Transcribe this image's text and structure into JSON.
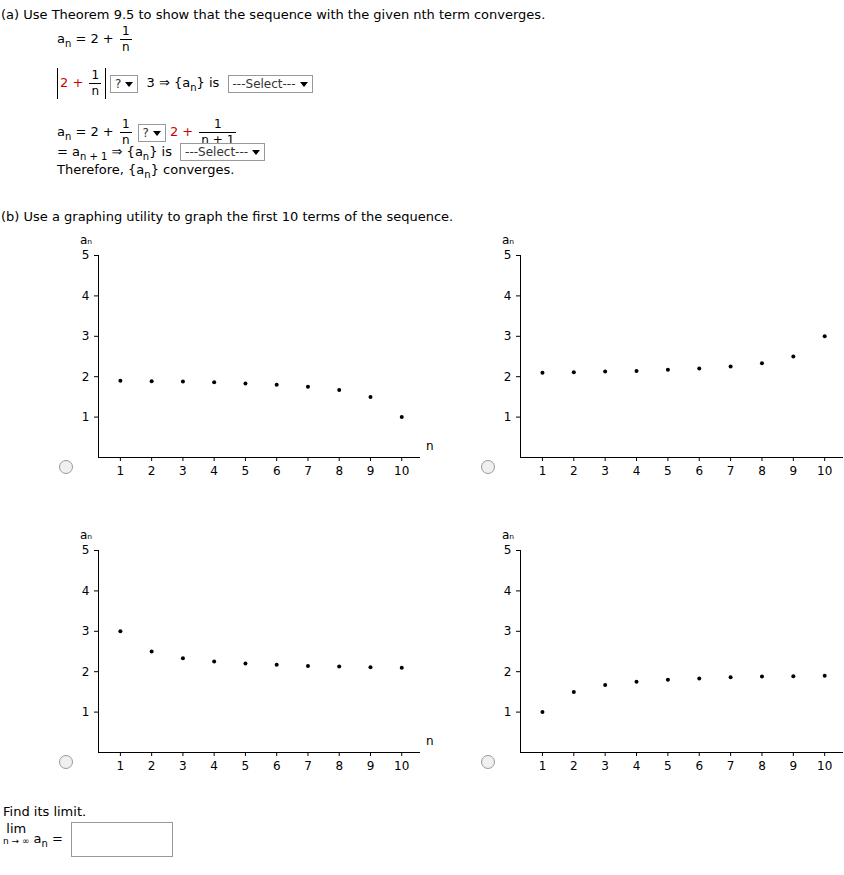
{
  "document": {
    "part_a": {
      "prompt": "(a) Use Theorem 9.5 to show that the sequence with the given nth term converges.",
      "lines": [
        [
          {
            "sub": [
              "a",
              "n"
            ]
          },
          " = 2 + ",
          {
            "frac": [
              "1",
              "n"
            ]
          }
        ],
        [
          {
            "abs": [
              {
                "red": "2 + "
              },
              {
                "frac": [
                  "1",
                  "n"
                ]
              }
            ]
          },
          {
            "select": "?"
          },
          " 3 ⇒ {",
          {
            "sub": [
              "a",
              "n"
            ]
          },
          "} is ",
          {
            "select": "---Select---"
          }
        ],
        [
          {
            "sub": [
              "a",
              "n"
            ]
          },
          " = 2 + ",
          {
            "frac": [
              "1",
              "n"
            ]
          },
          {
            "select": "?"
          },
          {
            "red": "2 + "
          },
          {
            "frac": [
              "1",
              "n + 1"
            ]
          }
        ],
        [
          "= ",
          {
            "sub": [
              "a",
              "n + 1"
            ]
          },
          " ⇒ {",
          {
            "sub": [
              "a",
              "n"
            ]
          },
          "} is ",
          {
            "select": "---Select---"
          }
        ],
        [
          "Therefore, {",
          {
            "sub": [
              "a",
              "n"
            ]
          },
          "} converges."
        ]
      ]
    },
    "part_b": {
      "prompt": "(b) Use a graphing utility to graph the first 10 terms of the sequence.",
      "limit_prompt": "Find its limit.",
      "limit_line": [
        {
          "lim": [
            "lim",
            "n → ∞"
          ]
        },
        " ",
        {
          "sub": [
            "a",
            "n"
          ]
        },
        " = "
      ]
    }
  },
  "chart_data": [
    {
      "type": "scatter",
      "x": [
        1,
        2,
        3,
        4,
        5,
        6,
        7,
        8,
        9,
        10
      ],
      "values": [
        1.9,
        1.89,
        1.88,
        1.86,
        1.83,
        1.8,
        1.75,
        1.67,
        1.5,
        1.0
      ],
      "xlim": [
        0.3,
        10.6
      ],
      "ylim": [
        0,
        5
      ],
      "xticks": [
        1,
        2,
        3,
        4,
        5,
        6,
        7,
        8,
        9,
        10
      ],
      "yticks": [
        1,
        2,
        3,
        4,
        5
      ],
      "x_label": "n",
      "y_label": "aₙ",
      "color": "#000000",
      "marker": "circle"
    },
    {
      "type": "scatter",
      "x": [
        1,
        2,
        3,
        4,
        5,
        6,
        7,
        8,
        9,
        10
      ],
      "values": [
        2.1,
        2.11,
        2.13,
        2.14,
        2.17,
        2.2,
        2.25,
        2.33,
        2.5,
        3.0
      ],
      "xlim": [
        0.3,
        10.6
      ],
      "ylim": [
        0,
        5
      ],
      "xticks": [
        1,
        2,
        3,
        4,
        5,
        6,
        7,
        8,
        9,
        10
      ],
      "yticks": [
        1,
        2,
        3,
        4,
        5
      ],
      "y_label": "aₙ",
      "color": "#000000",
      "marker": "circle"
    },
    {
      "type": "scatter",
      "x": [
        1,
        2,
        3,
        4,
        5,
        6,
        7,
        8,
        9,
        10
      ],
      "values": [
        3.0,
        2.5,
        2.33,
        2.25,
        2.2,
        2.17,
        2.14,
        2.13,
        2.11,
        2.1
      ],
      "xlim": [
        0.3,
        10.6
      ],
      "ylim": [
        0,
        5
      ],
      "xticks": [
        1,
        2,
        3,
        4,
        5,
        6,
        7,
        8,
        9,
        10
      ],
      "yticks": [
        1,
        2,
        3,
        4,
        5
      ],
      "x_label": "n",
      "y_label": "aₙ",
      "color": "#000000",
      "marker": "circle"
    },
    {
      "type": "scatter",
      "x": [
        1,
        2,
        3,
        4,
        5,
        6,
        7,
        8,
        9,
        10
      ],
      "values": [
        1.0,
        1.5,
        1.67,
        1.75,
        1.8,
        1.83,
        1.86,
        1.88,
        1.89,
        1.9
      ],
      "xlim": [
        0.3,
        10.6
      ],
      "ylim": [
        0,
        5
      ],
      "xticks": [
        1,
        2,
        3,
        4,
        5,
        6,
        7,
        8,
        9,
        10
      ],
      "yticks": [
        1,
        2,
        3,
        4,
        5
      ],
      "y_label": "aₙ",
      "color": "#000000",
      "marker": "circle"
    }
  ]
}
